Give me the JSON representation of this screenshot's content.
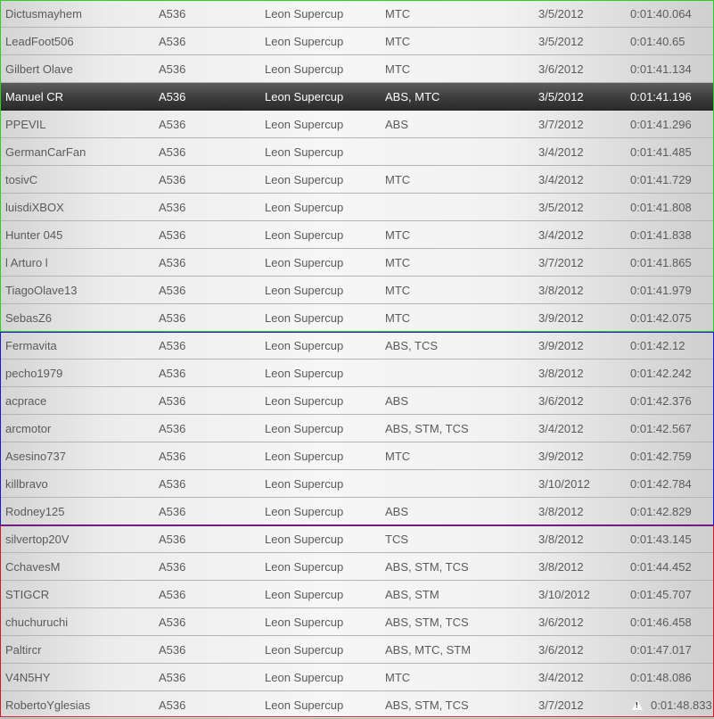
{
  "leaderboard": {
    "selected_index": 3,
    "groups": [
      {
        "color": "#2ecc2e",
        "rows": [
          0,
          11
        ]
      },
      {
        "color": "#1a1ad0",
        "rows": [
          12,
          18
        ]
      },
      {
        "color": "#d01a2a",
        "rows": [
          19,
          25
        ]
      }
    ],
    "rows": [
      {
        "driver": "Dictusmayhem",
        "car": "A536",
        "track": "Leon Supercup",
        "assists": "MTC",
        "date": "3/5/2012",
        "time": "0:01:40.064"
      },
      {
        "driver": "LeadFoot506",
        "car": "A536",
        "track": "Leon Supercup",
        "assists": "MTC",
        "date": "3/5/2012",
        "time": "0:01:40.65"
      },
      {
        "driver": "Gilbert Olave",
        "car": "A536",
        "track": "Leon Supercup",
        "assists": "MTC",
        "date": "3/6/2012",
        "time": "0:01:41.134"
      },
      {
        "driver": "Manuel CR",
        "car": "A536",
        "track": "Leon Supercup",
        "assists": "ABS, MTC",
        "date": "3/5/2012",
        "time": "0:01:41.196"
      },
      {
        "driver": "PPEVIL",
        "car": "A536",
        "track": "Leon Supercup",
        "assists": "ABS",
        "date": "3/7/2012",
        "time": "0:01:41.296"
      },
      {
        "driver": "GermanCarFan",
        "car": "A536",
        "track": "Leon Supercup",
        "assists": "",
        "date": "3/4/2012",
        "time": "0:01:41.485"
      },
      {
        "driver": "tosivC",
        "car": "A536",
        "track": "Leon Supercup",
        "assists": "MTC",
        "date": "3/4/2012",
        "time": "0:01:41.729"
      },
      {
        "driver": "luisdiXBOX",
        "car": "A536",
        "track": "Leon Supercup",
        "assists": "",
        "date": "3/5/2012",
        "time": "0:01:41.808"
      },
      {
        "driver": "Hunter 045",
        "car": "A536",
        "track": "Leon Supercup",
        "assists": "MTC",
        "date": "3/4/2012",
        "time": "0:01:41.838"
      },
      {
        "driver": "l Arturo l",
        "car": "A536",
        "track": "Leon Supercup",
        "assists": "MTC",
        "date": "3/7/2012",
        "time": "0:01:41.865"
      },
      {
        "driver": "TiagoOlave13",
        "car": "A536",
        "track": "Leon Supercup",
        "assists": "MTC",
        "date": "3/8/2012",
        "time": "0:01:41.979"
      },
      {
        "driver": "SebasZ6",
        "car": "A536",
        "track": "Leon Supercup",
        "assists": "MTC",
        "date": "3/9/2012",
        "time": "0:01:42.075"
      },
      {
        "driver": "Fermavita",
        "car": "A536",
        "track": "Leon Supercup",
        "assists": "ABS, TCS",
        "date": "3/9/2012",
        "time": "0:01:42.12"
      },
      {
        "driver": "pecho1979",
        "car": "A536",
        "track": "Leon Supercup",
        "assists": "",
        "date": "3/8/2012",
        "time": "0:01:42.242"
      },
      {
        "driver": "acprace",
        "car": "A536",
        "track": "Leon Supercup",
        "assists": "ABS",
        "date": "3/6/2012",
        "time": "0:01:42.376"
      },
      {
        "driver": "arcmotor",
        "car": "A536",
        "track": "Leon Supercup",
        "assists": "ABS, STM, TCS",
        "date": "3/4/2012",
        "time": "0:01:42.567"
      },
      {
        "driver": "Asesino737",
        "car": "A536",
        "track": "Leon Supercup",
        "assists": "MTC",
        "date": "3/9/2012",
        "time": "0:01:42.759"
      },
      {
        "driver": "killbravo",
        "car": "A536",
        "track": "Leon Supercup",
        "assists": "",
        "date": "3/10/2012",
        "time": "0:01:42.784"
      },
      {
        "driver": "Rodney125",
        "car": "A536",
        "track": "Leon Supercup",
        "assists": "ABS",
        "date": "3/8/2012",
        "time": "0:01:42.829"
      },
      {
        "driver": "silvertop20V",
        "car": "A536",
        "track": "Leon Supercup",
        "assists": "TCS",
        "date": "3/8/2012",
        "time": "0:01:43.145"
      },
      {
        "driver": "CchavesM",
        "car": "A536",
        "track": "Leon Supercup",
        "assists": "ABS, STM, TCS",
        "date": "3/8/2012",
        "time": "0:01:44.452"
      },
      {
        "driver": "STIGCR",
        "car": "A536",
        "track": "Leon Supercup",
        "assists": "ABS, STM",
        "date": "3/10/2012",
        "time": "0:01:45.707"
      },
      {
        "driver": "chuchuruchi",
        "car": "A536",
        "track": "Leon Supercup",
        "assists": "ABS, STM, TCS",
        "date": "3/6/2012",
        "time": "0:01:46.458"
      },
      {
        "driver": "Paltircr",
        "car": "A536",
        "track": "Leon Supercup",
        "assists": "ABS, MTC, STM",
        "date": "3/6/2012",
        "time": "0:01:47.017"
      },
      {
        "driver": "V4N5HY",
        "car": "A536",
        "track": "Leon Supercup",
        "assists": "MTC",
        "date": "3/4/2012",
        "time": "0:01:48.086"
      },
      {
        "driver": "RobertoYglesias",
        "car": "A536",
        "track": "Leon Supercup",
        "assists": "ABS, STM, TCS",
        "date": "3/7/2012",
        "time": "0:01:48.833",
        "warning_icon": "warning-icon"
      }
    ]
  }
}
